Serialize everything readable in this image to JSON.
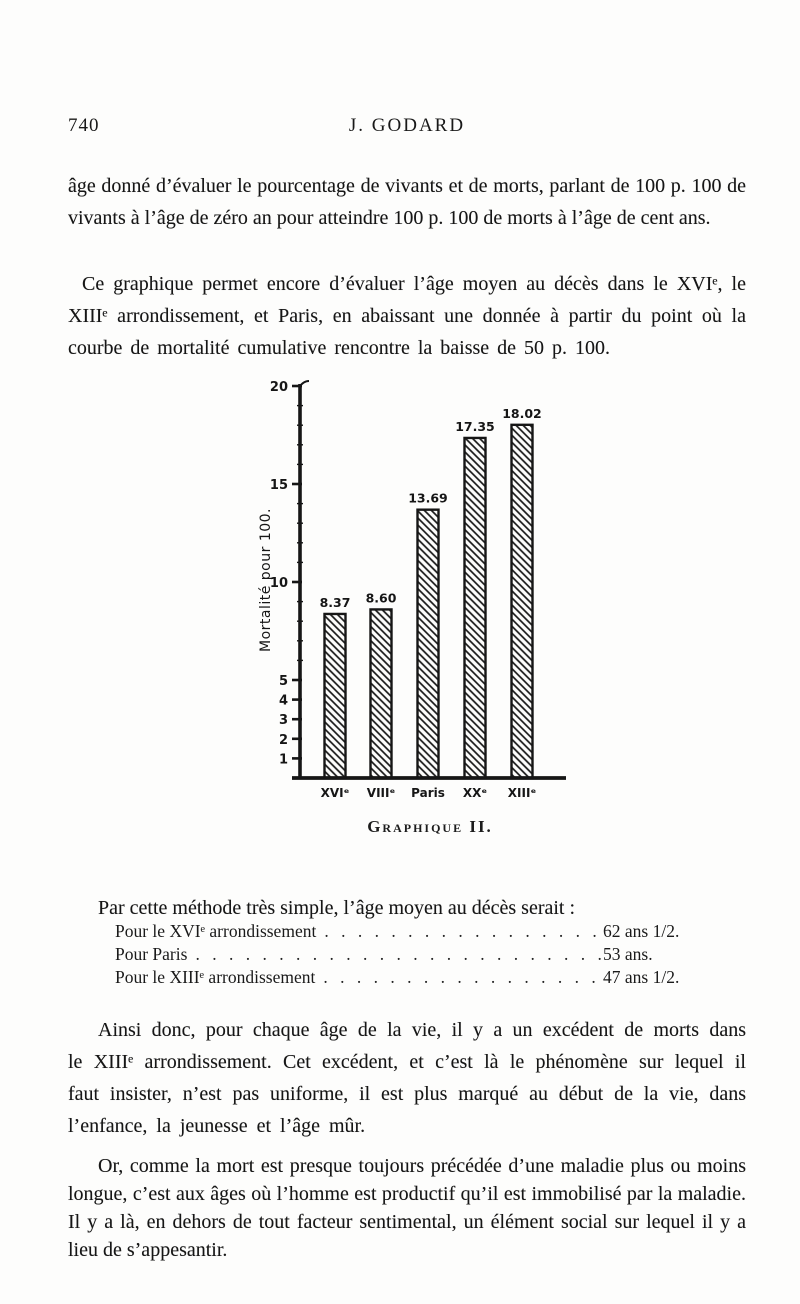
{
  "page": {
    "number": "740",
    "running_head": "J. GODARD"
  },
  "body": {
    "p1": "âge donné d’évaluer le pourcentage de vivants et de morts, parlant de 100 p. 100 de vivants à l’âge de zéro an pour atteindre 100 p. 100 de morts à l’âge de cent ans.",
    "p2": "Ce graphique permet encore d’évaluer l’âge moyen au décès dans le XVIᵉ, le XIIIᵉ arrondissement, et Paris, en abaissant une donnée à partir du point où la courbe de mortalité cumulative rencontre la baisse de 50 p. 100.",
    "p3": "Par cette méthode très simple, l’âge moyen au décès serait :",
    "p4": "Ainsi donc, pour chaque âge de la vie, il y a un excédent de morts dans le XIIIᵉ arrondissement. Cet excédent, et c’est là le phénomène sur lequel il faut insister, n’est pas uniforme, il est plus marqué au début de la vie, dans l’enfance, la jeunesse et l’âge mûr.",
    "p5": "Or, comme la mort est presque toujours précédée d’une maladie plus ou moins longue, c’est aux âges où l’homme est productif qu’il est immobilisé par la maladie. Il y a là, en dehors de tout facteur sentimental, un élément social sur lequel il y a lieu de s’appesantir."
  },
  "age_list": {
    "leader": ". . . . . . . . . . . . . . . . . . . . . . . . . . . . . .",
    "items": [
      {
        "label": "Pour le XVIᵉ arrondissement",
        "value": "62 ans 1/2."
      },
      {
        "label": "Pour Paris",
        "value": "53 ans."
      },
      {
        "label": "Pour le XIIIᵉ arrondissement",
        "value": "47 ans 1/2."
      }
    ]
  },
  "chart_data": {
    "type": "bar",
    "title": "Graphique II.",
    "categories": [
      "XVIᵉ",
      "VIIIᵉ",
      "Paris",
      "XXᵉ",
      "XIIIᵉ"
    ],
    "values": [
      8.37,
      8.6,
      13.69,
      17.35,
      18.02
    ],
    "value_labels": [
      "8.37",
      "8.60",
      "13.69",
      "17.35",
      "18.02"
    ],
    "xlabel": "",
    "ylabel": "Mortalité pour 100.",
    "yticks": [
      1,
      2,
      3,
      4,
      5,
      10,
      15,
      20
    ],
    "ylim": [
      0,
      20
    ],
    "grid": false,
    "legend": "none",
    "bar_style": "black diagonal hatch, heavy outline",
    "ink_color": "#161616",
    "paper_color": "#fdfdfc"
  }
}
